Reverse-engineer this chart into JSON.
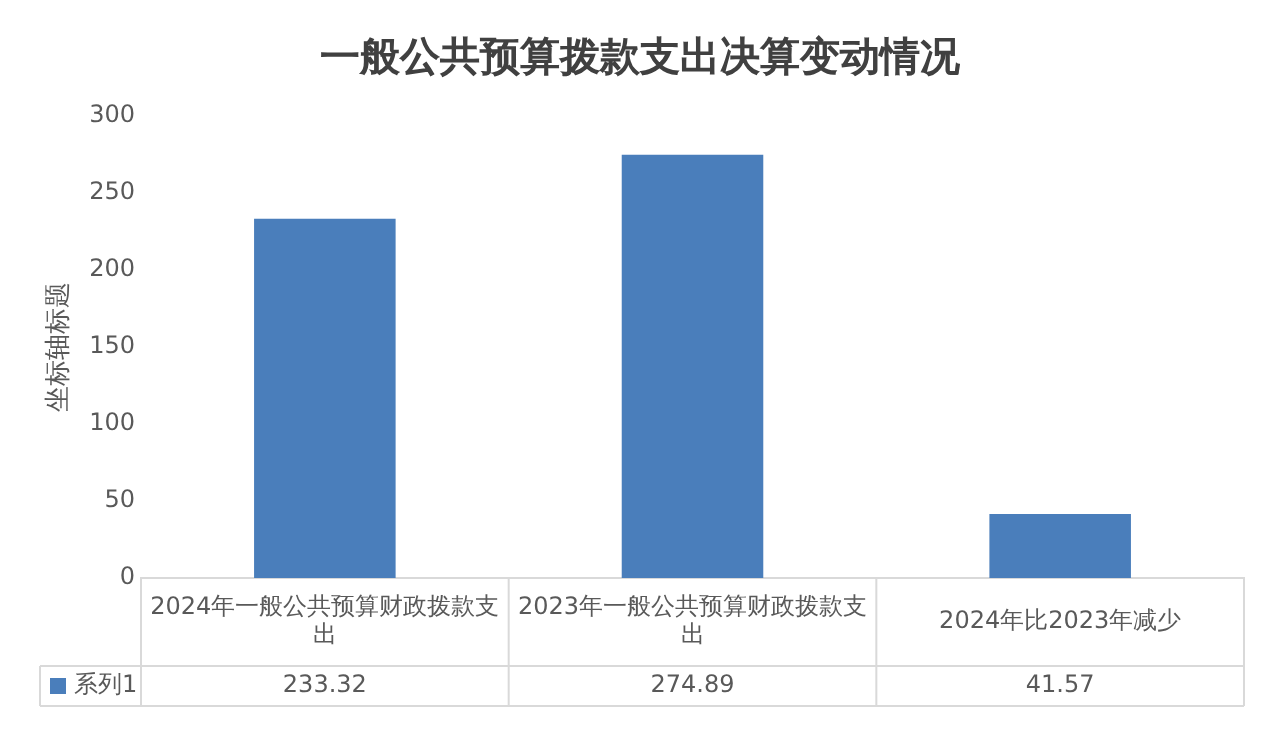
{
  "chart_data": {
    "type": "bar",
    "title": "一般公共预算拨款支出决算变动情况",
    "ylabel": "坐标轴标题",
    "categories": [
      "2024年一般公共预算财政拨款支出",
      "2023年一般公共预算财政拨款支出",
      "2024年比2023年减少"
    ],
    "series": [
      {
        "name": "系列1",
        "color": "#4a7ebb",
        "values": [
          233.32,
          274.89,
          41.57
        ]
      }
    ],
    "ylim": [
      0,
      300
    ],
    "yticks": [
      0,
      50,
      100,
      150,
      200,
      250,
      300
    ],
    "grid": false,
    "legend": "bottom",
    "data_labels": true
  }
}
